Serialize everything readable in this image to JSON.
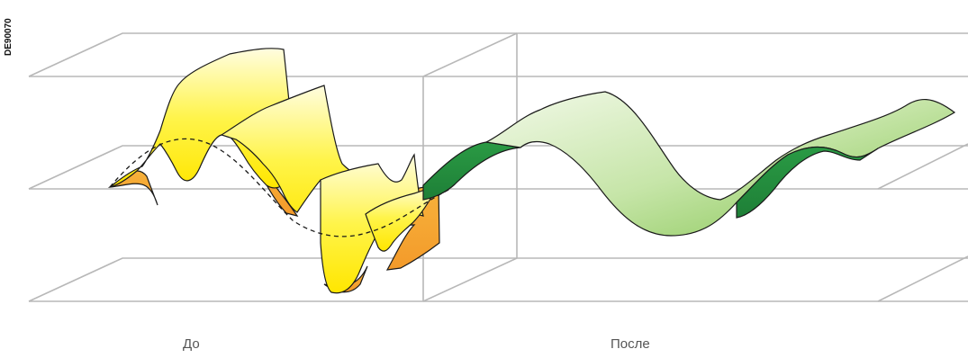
{
  "figure": {
    "ref_code": "DE90070",
    "caption_before": "До",
    "caption_after": "После"
  },
  "colors": {
    "grid_line": "#b8b8b8",
    "yellow_light": "#fffdd6",
    "yellow": "#fff21a",
    "orange": "#f7a233",
    "green_light": "#eef7e0",
    "green": "#8cc95a",
    "green_dark": "#1f8f3c",
    "outline": "#1a1a1a"
  },
  "icons": {
    "distorted_wave": "distorted-waveform-ribbon",
    "clean_wave": "sine-waveform-ribbon"
  }
}
